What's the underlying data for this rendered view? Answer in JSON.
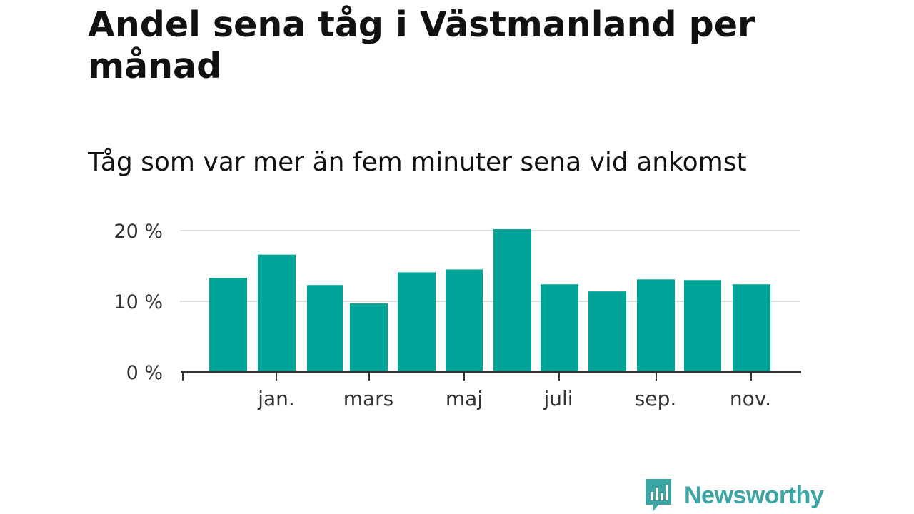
{
  "chart_data": {
    "type": "bar",
    "title": "Andel sena tåg i Västmanland per månad",
    "subtitle": "Tåg som var mer än fem minuter sena vid ankomst",
    "values": [
      13.3,
      16.6,
      12.3,
      9.7,
      14.1,
      14.5,
      20.2,
      12.4,
      11.4,
      13.1,
      13.0,
      12.4
    ],
    "x_tick_labels": [
      "jan.",
      "mars",
      "maj",
      "juli",
      "sep.",
      "nov."
    ],
    "y_ticks": [
      0,
      10,
      20
    ],
    "y_tick_labels": [
      "0 %",
      "10 %",
      "20 %"
    ],
    "ylim": [
      0,
      20
    ],
    "grid": true,
    "bar_color": "#00a398",
    "gridline_color": "#dddddd",
    "axis_color": "#333333"
  },
  "branding": {
    "logo_text": "Newsworthy",
    "logo_color": "#3ba6a4"
  }
}
